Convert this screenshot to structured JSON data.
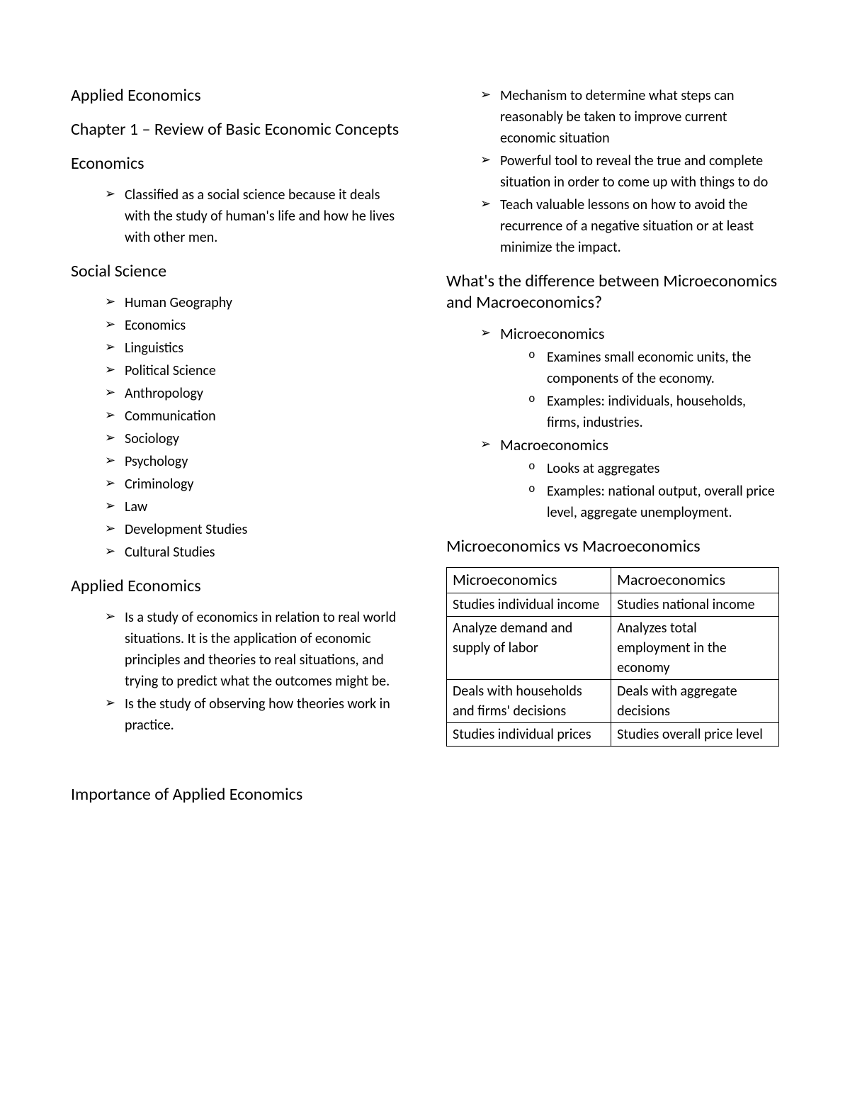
{
  "left": {
    "title": "Applied Economics",
    "chapter": "Chapter 1 – Review of Basic Economic Concepts",
    "sec1": {
      "heading": "Economics",
      "items": [
        "Classified as a social science because it deals with the study of human's life and how he lives with other men."
      ]
    },
    "sec2": {
      "heading": "Social Science",
      "items": [
        "Human Geography",
        "Economics",
        "Linguistics",
        "Political Science",
        "Anthropology",
        "Communication",
        "Sociology",
        "Psychology",
        "Criminology",
        "Law",
        "Development Studies",
        "Cultural Studies"
      ]
    },
    "sec3": {
      "heading": "Applied Economics",
      "items": [
        "Is a study of economics in relation to real world situations. It is the application of economic principles and theories to real situations, and trying to predict what the outcomes might be.",
        "Is the study of observing how theories work in practice."
      ]
    },
    "sec4": {
      "heading": "Importance of Applied Economics"
    }
  },
  "right": {
    "importance_items": [
      "Mechanism to determine what steps can reasonably be taken to improve current economic situation",
      "Powerful tool to reveal the true and complete situation in order to come up with things to do",
      "Teach valuable lessons on how to avoid the recurrence of a negative situation or at least minimize the impact."
    ],
    "diff": {
      "heading": "What's the difference between Microeconomics and Macroeconomics?",
      "micro": {
        "label": "Microeconomics",
        "items": [
          "Examines small economic units, the components of the economy.",
          "Examples: individuals, households, firms, industries."
        ]
      },
      "macro": {
        "label": "Macroeconomics",
        "items": [
          "Looks at aggregates",
          "Examples: national output, overall price level, aggregate unemployment."
        ]
      }
    },
    "table": {
      "heading": "Microeconomics vs Macroeconomics",
      "header": [
        "Microeconomics",
        "Macroeconomics"
      ],
      "rows": [
        [
          "Studies individual income",
          "Studies national income"
        ],
        [
          "Analyze demand and supply of labor",
          "Analyzes total employment in the economy"
        ],
        [
          "Deals with households and firms' decisions",
          "Deals with aggregate decisions"
        ],
        [
          "Studies individual prices",
          "Studies overall price level"
        ]
      ]
    }
  }
}
